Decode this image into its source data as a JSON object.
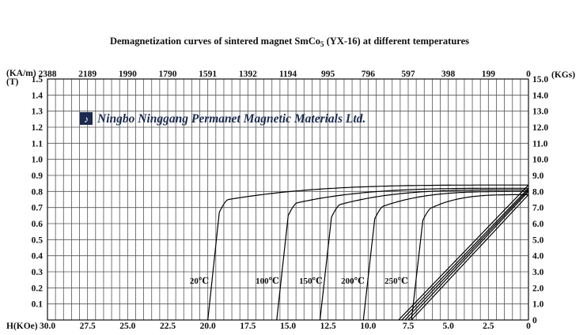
{
  "chart_data": {
    "type": "line",
    "title": "Demagnetization curves of sintered magnet SmCo",
    "title_sub": "5",
    "title_tail": " (YX-16) at different temperatures",
    "company": "Ningbo Ninggang Permanet Magnetic Materials Ltd.",
    "xlabel": "H(KOe)",
    "ylabel_left": "(T)",
    "ylabel_right": "(KGs)",
    "xlabel_top": "(KA/m)",
    "xlim": [
      30.0,
      0
    ],
    "ylim": [
      0,
      1.5
    ],
    "grid": true,
    "x_ticks": [
      "30.0",
      "27.5",
      "25.0",
      "22.5",
      "20.0",
      "17.5",
      "15.0",
      "12.5",
      "10.0",
      "7.5",
      "5.0",
      "2.5",
      "0"
    ],
    "x_top_ticks": [
      "2388",
      "2189",
      "1990",
      "1790",
      "1591",
      "1392",
      "1194",
      "995",
      "796",
      "597",
      "398",
      "199",
      "0"
    ],
    "y_left_ticks": [
      "0.1",
      "0.2",
      "0.3",
      "0.4",
      "0.5",
      "0.6",
      "0.7",
      "0.8",
      "0.9",
      "1.0",
      "1.1",
      "1.2",
      "1.3",
      "1.4",
      "1.5"
    ],
    "y_right_ticks": [
      "0",
      "1.0",
      "2.0",
      "3.0",
      "4.0",
      "5.0",
      "6.0",
      "7.0",
      "8.0",
      "9.0",
      "10.0",
      "11.0",
      "12.0",
      "13.0",
      "14.0",
      "15.0"
    ],
    "series": [
      {
        "name": "20℃",
        "Br": 0.84,
        "Hcb": 8.1,
        "knee": 0.75,
        "Hcj": 20.0
      },
      {
        "name": "100℃",
        "Br": 0.82,
        "Hcb": 7.9,
        "knee": 0.73,
        "Hcj": 15.7
      },
      {
        "name": "150℃",
        "Br": 0.81,
        "Hcb": 7.7,
        "knee": 0.72,
        "Hcj": 13.0
      },
      {
        "name": "200℃",
        "Br": 0.8,
        "Hcb": 7.5,
        "knee": 0.71,
        "Hcj": 10.3
      },
      {
        "name": "250℃",
        "Br": 0.78,
        "Hcb": 7.3,
        "knee": 0.7,
        "Hcj": 7.3
      }
    ],
    "temperature_labels": [
      "20℃",
      "100℃",
      "150℃",
      "200℃",
      "250℃"
    ]
  }
}
